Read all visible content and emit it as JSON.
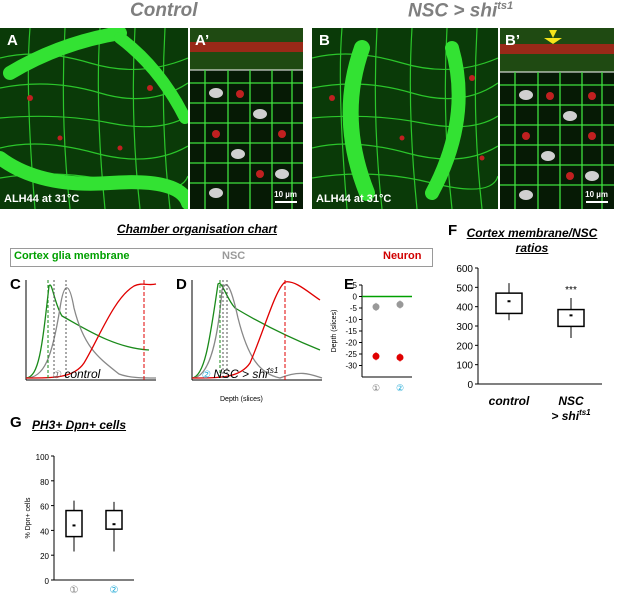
{
  "headers": {
    "control": "Control",
    "mutant_main": "NSC > shi",
    "mutant_sup": "ts1"
  },
  "panels": {
    "A": "A",
    "A_prime": "A’",
    "B": "B",
    "B_prime": "B’",
    "C": "C",
    "D": "D",
    "E": "E",
    "F": "F",
    "G": "G"
  },
  "micro": {
    "a_caption": "ALH44 at 31°C",
    "b_caption": "ALH44 at 31°C",
    "scale_a": "10 µm",
    "scale_b": "10 µm"
  },
  "chamber": {
    "title": "Chamber organisation chart",
    "legend": {
      "glia": "Cortex glia membrane",
      "nsc": "NSC",
      "neuron": "Neuron"
    },
    "c_label": "control",
    "d_label_main": "NSC > shi",
    "d_label_sup": "ts1",
    "circle1": "①",
    "circle2": "②",
    "xlabel": "Depth (slices)"
  },
  "chart_data": [
    {
      "panel": "E",
      "type": "scatter",
      "ylabel": "Depth (slices)",
      "yticks": [
        "5",
        "0",
        "-5",
        "-10",
        "-15",
        "-20",
        "-25",
        "-30"
      ],
      "ylim": [
        -35,
        5
      ],
      "categories": [
        "①",
        "②"
      ],
      "series": [
        {
          "color": "#00a000",
          "values": [
            0,
            0
          ]
        },
        {
          "color": "#999999",
          "values": [
            -4.5,
            -3.5
          ]
        },
        {
          "color": "#e00000",
          "values": [
            -26,
            -26.5
          ]
        }
      ]
    },
    {
      "panel": "F",
      "type": "box",
      "title": "Cortex membrane/NSC ratios",
      "ylim": [
        0,
        600
      ],
      "yticks": [
        "0",
        "100",
        "200",
        "300",
        "400",
        "500",
        "600"
      ],
      "categories": [
        "control",
        "NSC > shi"
      ],
      "category_sup": [
        "",
        "ts1"
      ],
      "boxes": [
        {
          "min": 330,
          "q1": 365,
          "median": 428,
          "q3": 470,
          "max": 522
        },
        {
          "min": 238,
          "q1": 298,
          "median": 355,
          "q3": 385,
          "max": 445
        }
      ],
      "annotation": "***"
    },
    {
      "panel": "G",
      "type": "box",
      "title": "PH3+ Dpn+ cells",
      "ylabel": "% Dpn+ cells",
      "ylim": [
        0,
        100
      ],
      "yticks": [
        "0",
        "20",
        "40",
        "60",
        "80",
        "100"
      ],
      "categories": [
        "①",
        "②"
      ],
      "boxes": [
        {
          "min": 23,
          "q1": 35,
          "median": 44,
          "q3": 56,
          "max": 64
        },
        {
          "min": 23,
          "q1": 41,
          "median": 45,
          "q3": 56,
          "max": 63
        }
      ]
    }
  ]
}
